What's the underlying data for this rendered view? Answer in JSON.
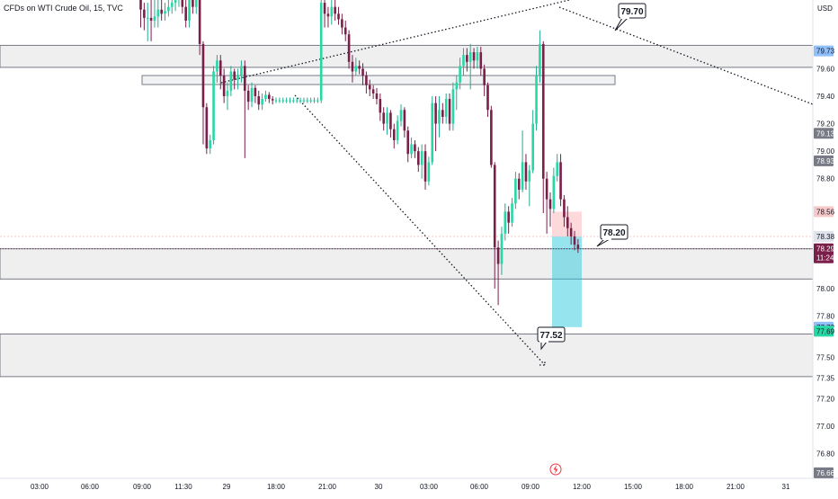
{
  "header": {
    "title": "CFDs on WTI Crude Oil, 15, TVC",
    "currency": "USD"
  },
  "chart_data": {
    "type": "candlestick",
    "y_range": [
      76.62,
      80.1
    ],
    "price_ticks": [
      "79.60",
      "79.40",
      "79.20",
      "79.00",
      "78.80",
      "78.00",
      "77.80",
      "77.50",
      "77.35",
      "77.20",
      "77.00",
      "76.80"
    ],
    "time_ticks": [
      "03:00",
      "06:00",
      "09:00",
      "11:30",
      "29",
      "18:00",
      "21:00",
      "30",
      "03:00",
      "06:00",
      "09:00",
      "12:00",
      "15:00",
      "18:00",
      "21:00",
      "31"
    ],
    "price_badges": [
      {
        "value": "79.73",
        "price": 79.73,
        "bg": "#90bff9",
        "fg": "#131722"
      },
      {
        "value": "79.13",
        "price": 79.13,
        "bg": "#787b86",
        "fg": "#ffffff"
      },
      {
        "value": "78.93",
        "price": 78.93,
        "bg": "#787b86",
        "fg": "#ffffff"
      },
      {
        "value": "78.56",
        "price": 78.56,
        "bg": "#f7c9c9",
        "fg": "#131722"
      },
      {
        "value": "78.38",
        "price": 78.38,
        "bg": "#e0e3eb",
        "fg": "#131722"
      },
      {
        "value": "77.72",
        "price": 77.72,
        "bg": "#90bff9",
        "fg": "#131722"
      },
      {
        "value": "77.69",
        "price": 77.69,
        "bg": "#26d8a4",
        "fg": "#131722"
      },
      {
        "value": "76.66",
        "price": 76.66,
        "bg": "#787b86",
        "fg": "#ffffff"
      }
    ],
    "current_price": {
      "value": "78.29",
      "countdown": "11:24",
      "price": 78.29,
      "bg": "#7a1f4a",
      "fg": "#ffffff"
    },
    "zones": [
      {
        "top": 79.77,
        "bottom": 79.61
      },
      {
        "top": 78.29,
        "bottom": 78.07
      },
      {
        "top": 77.67,
        "bottom": 77.36
      }
    ],
    "trade_box": {
      "entry": 78.38,
      "stop": 78.56,
      "target": 77.72
    },
    "callouts": [
      "79.70",
      "78.20",
      "77.52"
    ],
    "candles": [
      [
        80.1,
        80.03,
        80.15,
        79.9
      ],
      [
        80.03,
        79.97,
        80.08,
        79.88
      ],
      [
        79.97,
        79.97,
        80.08,
        79.8
      ],
      [
        79.97,
        79.95,
        80.1,
        79.8
      ],
      [
        79.95,
        79.98,
        80.1,
        79.9
      ],
      [
        79.98,
        80.03,
        80.1,
        79.9
      ],
      [
        80.03,
        80.0,
        80.1,
        79.95
      ],
      [
        80.0,
        80.02,
        80.08,
        79.95
      ],
      [
        80.02,
        80.05,
        80.1,
        79.98
      ],
      [
        80.05,
        80.08,
        80.12,
        80.0
      ],
      [
        80.08,
        80.12,
        80.15,
        80.02
      ],
      [
        80.12,
        80.15,
        80.2,
        80.05
      ],
      [
        80.15,
        80.05,
        80.2,
        80.0
      ],
      [
        80.05,
        79.95,
        80.1,
        79.9
      ],
      [
        79.95,
        80.1,
        80.15,
        79.9
      ],
      [
        80.1,
        80.05,
        80.15,
        80.0
      ],
      [
        80.05,
        80.1,
        80.15,
        80.0
      ],
      [
        80.1,
        79.78,
        80.12,
        79.7
      ],
      [
        79.78,
        79.32,
        79.8,
        79.05
      ],
      [
        79.32,
        79.02,
        79.35,
        78.98
      ],
      [
        79.02,
        79.08,
        79.12,
        78.98
      ],
      [
        79.08,
        79.58,
        79.62,
        79.05
      ],
      [
        79.58,
        79.66,
        79.7,
        79.5
      ],
      [
        79.66,
        79.55,
        79.7,
        79.45
      ],
      [
        79.55,
        79.4,
        79.6,
        79.35
      ],
      [
        79.4,
        79.44,
        79.5,
        79.3
      ],
      [
        79.44,
        79.58,
        79.62,
        79.4
      ],
      [
        79.58,
        79.52,
        79.6,
        79.45
      ],
      [
        79.52,
        79.55,
        79.6,
        79.45
      ],
      [
        79.55,
        79.62,
        79.66,
        79.5
      ],
      [
        79.62,
        79.44,
        79.66,
        78.95
      ],
      [
        79.44,
        79.36,
        79.48,
        79.3
      ],
      [
        79.36,
        79.46,
        79.5,
        79.32
      ],
      [
        79.46,
        79.4,
        79.48,
        79.35
      ],
      [
        79.4,
        79.34,
        79.44,
        79.3
      ],
      [
        79.34,
        79.38,
        79.42,
        79.3
      ],
      [
        79.38,
        79.41,
        79.44,
        79.36
      ],
      [
        79.41,
        79.38,
        79.43,
        79.35
      ],
      [
        79.38,
        79.37,
        79.4,
        79.34
      ],
      [
        79.37,
        79.37,
        79.39,
        79.35
      ],
      [
        79.37,
        79.37,
        79.39,
        79.35
      ],
      [
        79.37,
        79.37,
        79.39,
        79.35
      ],
      [
        79.37,
        79.37,
        79.39,
        79.35
      ],
      [
        79.37,
        79.37,
        79.39,
        79.35
      ],
      [
        79.37,
        79.37,
        79.39,
        79.35
      ],
      [
        79.37,
        79.37,
        79.39,
        79.35
      ],
      [
        79.37,
        79.37,
        79.39,
        79.35
      ],
      [
        79.37,
        79.37,
        79.39,
        79.35
      ],
      [
        79.37,
        79.37,
        79.39,
        79.35
      ],
      [
        79.37,
        79.37,
        79.39,
        79.35
      ],
      [
        79.37,
        79.37,
        79.39,
        79.35
      ],
      [
        79.37,
        79.37,
        79.39,
        79.35
      ],
      [
        79.37,
        80.08,
        80.15,
        79.35
      ],
      [
        80.08,
        80.0,
        80.12,
        79.9
      ],
      [
        80.0,
        79.98,
        80.05,
        79.9
      ],
      [
        79.98,
        80.05,
        80.1,
        79.92
      ],
      [
        80.05,
        80.0,
        80.1,
        79.95
      ],
      [
        80.0,
        79.96,
        80.05,
        79.92
      ],
      [
        79.96,
        79.9,
        80.0,
        79.85
      ],
      [
        79.9,
        79.85,
        79.95,
        79.8
      ],
      [
        79.85,
        79.65,
        79.88,
        79.6
      ],
      [
        79.65,
        79.58,
        79.7,
        79.5
      ],
      [
        79.58,
        79.62,
        79.68,
        79.55
      ],
      [
        79.62,
        79.6,
        79.66,
        79.56
      ],
      [
        79.6,
        79.55,
        79.64,
        79.48
      ],
      [
        79.55,
        79.48,
        79.58,
        79.42
      ],
      [
        79.48,
        79.45,
        79.52,
        79.4
      ],
      [
        79.45,
        79.42,
        79.48,
        79.38
      ],
      [
        79.42,
        79.38,
        79.46,
        79.34
      ],
      [
        79.38,
        79.28,
        79.42,
        79.22
      ],
      [
        79.28,
        79.2,
        79.32,
        79.15
      ],
      [
        79.2,
        79.28,
        79.32,
        79.12
      ],
      [
        79.28,
        79.16,
        79.3,
        79.1
      ],
      [
        79.16,
        79.08,
        79.2,
        79.02
      ],
      [
        79.08,
        79.22,
        79.26,
        79.05
      ],
      [
        79.22,
        79.3,
        79.34,
        79.18
      ],
      [
        79.3,
        79.15,
        79.32,
        79.1
      ],
      [
        79.15,
        78.98,
        79.18,
        78.92
      ],
      [
        78.98,
        79.05,
        79.1,
        78.95
      ],
      [
        79.05,
        79.0,
        79.08,
        78.95
      ],
      [
        79.0,
        78.9,
        79.03,
        78.85
      ],
      [
        78.9,
        79.0,
        79.05,
        78.8
      ],
      [
        79.0,
        78.78,
        79.05,
        78.72
      ],
      [
        78.78,
        78.92,
        78.96,
        78.75
      ],
      [
        78.92,
        79.35,
        79.4,
        78.9
      ],
      [
        79.35,
        79.2,
        79.4,
        79.0
      ],
      [
        79.2,
        79.3,
        79.4,
        79.1
      ],
      [
        79.3,
        79.25,
        79.35,
        79.2
      ],
      [
        79.25,
        79.38,
        79.42,
        79.2
      ],
      [
        79.38,
        79.2,
        79.42,
        79.15
      ],
      [
        79.2,
        79.45,
        79.5,
        79.15
      ],
      [
        79.45,
        79.5,
        79.55,
        79.3
      ],
      [
        79.5,
        79.62,
        79.68,
        79.45
      ],
      [
        79.62,
        79.7,
        79.75,
        79.55
      ],
      [
        79.7,
        79.65,
        79.75,
        79.58
      ],
      [
        79.65,
        79.72,
        79.78,
        79.45
      ],
      [
        79.72,
        79.66,
        79.75,
        79.6
      ],
      [
        79.66,
        79.72,
        79.76,
        79.6
      ],
      [
        79.72,
        79.6,
        79.76,
        79.55
      ],
      [
        79.6,
        79.48,
        79.63,
        79.4
      ],
      [
        79.48,
        79.3,
        79.5,
        79.25
      ],
      [
        79.3,
        78.9,
        79.33,
        78.88
      ],
      [
        78.9,
        78.3,
        78.92,
        78.0
      ],
      [
        78.3,
        78.18,
        78.35,
        77.88
      ],
      [
        78.18,
        78.4,
        78.45,
        78.1
      ],
      [
        78.4,
        78.56,
        78.62,
        78.35
      ],
      [
        78.56,
        78.48,
        78.6,
        78.4
      ],
      [
        78.48,
        78.62,
        78.66,
        78.45
      ],
      [
        78.62,
        78.8,
        78.85,
        78.58
      ],
      [
        78.8,
        78.72,
        78.84,
        78.65
      ],
      [
        78.72,
        78.92,
        79.15,
        78.7
      ],
      [
        78.92,
        78.78,
        78.98,
        78.72
      ],
      [
        78.78,
        78.86,
        78.9,
        78.6
      ],
      [
        78.86,
        79.2,
        79.3,
        78.84
      ],
      [
        79.2,
        79.55,
        79.62,
        79.15
      ],
      [
        79.55,
        79.78,
        79.88,
        79.5
      ],
      [
        79.78,
        78.8,
        79.8,
        78.55
      ],
      [
        78.8,
        78.65,
        78.85,
        78.4
      ],
      [
        78.65,
        78.58,
        78.7,
        78.45
      ],
      [
        78.58,
        78.82,
        78.88,
        78.55
      ],
      [
        78.82,
        78.92,
        78.98,
        78.78
      ],
      [
        78.92,
        78.65,
        78.98,
        78.6
      ],
      [
        78.65,
        78.52,
        78.68,
        78.45
      ],
      [
        78.52,
        78.44,
        78.6,
        78.38
      ],
      [
        78.44,
        78.38,
        78.48,
        78.32
      ],
      [
        78.38,
        78.32,
        78.42,
        78.28
      ],
      [
        78.32,
        78.29,
        78.36,
        78.26
      ]
    ]
  }
}
